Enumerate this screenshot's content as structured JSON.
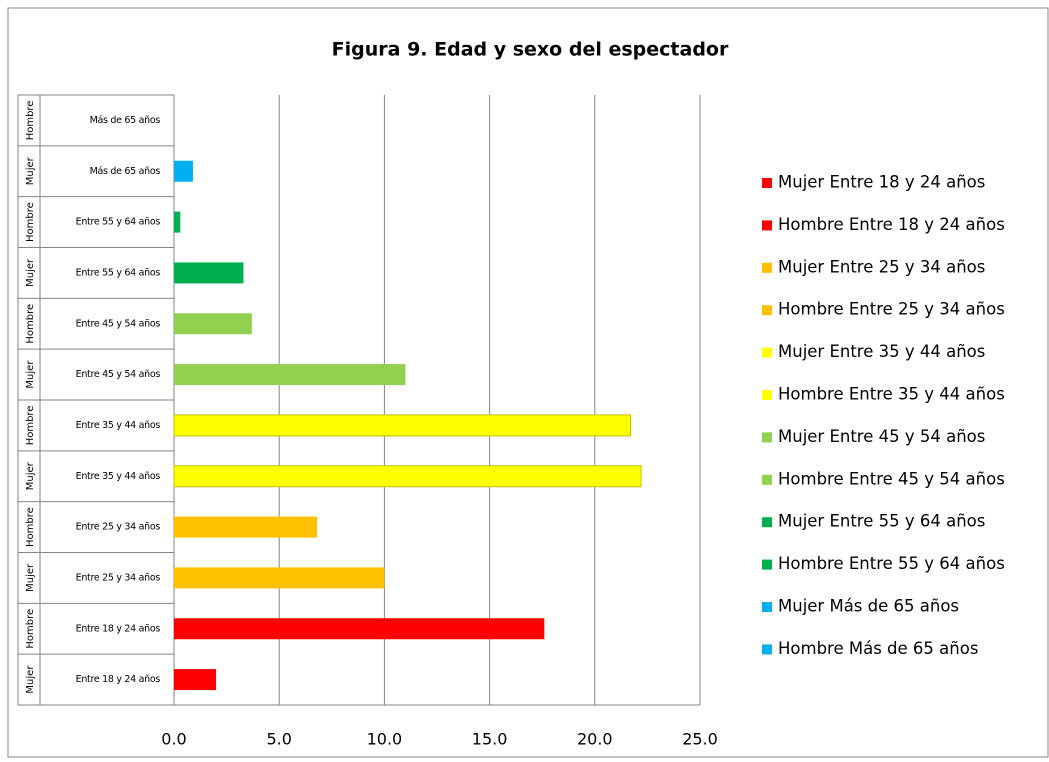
{
  "chart_data": {
    "type": "bar",
    "orientation": "horizontal",
    "title": "Figura 9. Edad y sexo del espectador",
    "categories": [
      [
        "Mujer",
        "Entre 18 y 24 años"
      ],
      [
        "Hombre",
        "Entre 18 y 24 años"
      ],
      [
        "Mujer",
        "Entre 25 y 34 años"
      ],
      [
        "Hombre",
        "Entre 25 y 34 años"
      ],
      [
        "Mujer",
        "Entre 35 y 44 años"
      ],
      [
        "Hombre",
        "Entre 35 y 44 años"
      ],
      [
        "Mujer",
        "Entre 45 y 54 años"
      ],
      [
        "Hombre",
        "Entre 45 y 54 años"
      ],
      [
        "Mujer",
        "Entre 55 y 64 años"
      ],
      [
        "Hombre",
        "Entre 55 y 64 años"
      ],
      [
        "Mujer",
        "Más de 65 años"
      ],
      [
        "Hombre",
        "Más de 65 años"
      ]
    ],
    "series": [
      {
        "name": "Mujer Entre 18 y 24 años",
        "color": "#ff0000",
        "values": [
          2.0,
          null,
          null,
          null,
          null,
          null,
          null,
          null,
          null,
          null,
          null,
          null
        ]
      },
      {
        "name": "Hombre Entre 18 y 24 años",
        "color": "#ff0000",
        "values": [
          null,
          17.6,
          null,
          null,
          null,
          null,
          null,
          null,
          null,
          null,
          null,
          null
        ]
      },
      {
        "name": "Mujer Entre 25 y 34 años",
        "color": "#ffc000",
        "values": [
          null,
          null,
          10.0,
          null,
          null,
          null,
          null,
          null,
          null,
          null,
          null,
          null
        ]
      },
      {
        "name": "Hombre Entre 25 y 34 años",
        "color": "#ffc000",
        "values": [
          null,
          null,
          null,
          6.8,
          null,
          null,
          null,
          null,
          null,
          null,
          null,
          null
        ]
      },
      {
        "name": "Mujer Entre 35 y 44 años",
        "color": "#ffff00",
        "values": [
          null,
          null,
          null,
          null,
          22.2,
          null,
          null,
          null,
          null,
          null,
          null,
          null
        ]
      },
      {
        "name": "Hombre Entre 35 y 44 años",
        "color": "#ffff00",
        "values": [
          null,
          null,
          null,
          null,
          null,
          21.7,
          null,
          null,
          null,
          null,
          null,
          null
        ]
      },
      {
        "name": "Mujer Entre 45 y 54 años",
        "color": "#92d050",
        "values": [
          null,
          null,
          null,
          null,
          null,
          null,
          11.0,
          null,
          null,
          null,
          null,
          null
        ]
      },
      {
        "name": "Hombre Entre 45 y 54 años",
        "color": "#92d050",
        "values": [
          null,
          null,
          null,
          null,
          null,
          null,
          null,
          3.7,
          null,
          null,
          null,
          null
        ]
      },
      {
        "name": "Mujer Entre 55 y 64 años",
        "color": "#00b050",
        "values": [
          null,
          null,
          null,
          null,
          null,
          null,
          null,
          null,
          3.3,
          null,
          null,
          null
        ]
      },
      {
        "name": "Hombre Entre 55 y 64 años",
        "color": "#00b050",
        "values": [
          null,
          null,
          null,
          null,
          null,
          null,
          null,
          null,
          null,
          0.3,
          null,
          null
        ]
      },
      {
        "name": "Mujer Más de 65 años",
        "color": "#00b0f0",
        "values": [
          null,
          null,
          null,
          null,
          null,
          null,
          null,
          null,
          null,
          null,
          0.9,
          null
        ]
      },
      {
        "name": "Hombre Más de 65 años",
        "color": "#00b0f0",
        "values": [
          null,
          null,
          null,
          null,
          null,
          null,
          null,
          null,
          null,
          null,
          null,
          0
        ]
      }
    ],
    "xlim": [
      0,
      25
    ],
    "xticks": [
      {
        "value": 0,
        "label": "0.0"
      },
      {
        "value": 5,
        "label": "5.0"
      },
      {
        "value": 10,
        "label": "10.0"
      },
      {
        "value": 15,
        "label": "15.0"
      },
      {
        "value": 20,
        "label": "20.0"
      },
      {
        "value": 25,
        "label": "25.0"
      }
    ],
    "grid": true,
    "legend": "right"
  }
}
